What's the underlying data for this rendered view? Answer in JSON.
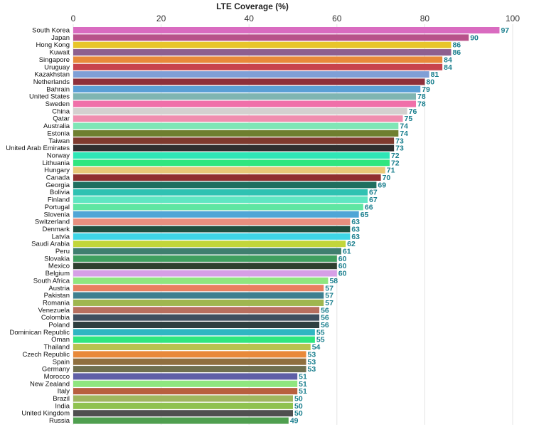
{
  "chart_data": {
    "type": "bar",
    "orientation": "horizontal",
    "title": "LTE Coverage (%)",
    "xlabel": "",
    "ylabel": "",
    "xlim": [
      0,
      100
    ],
    "ticks": [
      0,
      20,
      40,
      60,
      80,
      100
    ],
    "grid": true,
    "categories": [
      "South Korea",
      "Japan",
      "Hong Kong",
      "Kuwait",
      "Singapore",
      "Uruguay",
      "Kazakhstan",
      "Netherlands",
      "Bahrain",
      "United States",
      "Sweden",
      "China",
      "Qatar",
      "Australia",
      "Estonia",
      "Taiwan",
      "United Arab Emirates",
      "Norway",
      "Lithuania",
      "Hungary",
      "Canada",
      "Georgia",
      "Bolivia",
      "Finland",
      "Portugal",
      "Slovenia",
      "Switzerland",
      "Denmark",
      "Latvia",
      "Saudi Arabia",
      "Peru",
      "Slovakia",
      "Mexico",
      "Belgium",
      "South Africa",
      "Austria",
      "Pakistan",
      "Romania",
      "Venezuela",
      "Colombia",
      "Poland",
      "Dominican Republic",
      "Oman",
      "Thailand",
      "Czech Republic",
      "Spain",
      "Germany",
      "Morocco",
      "New Zealand",
      "Italy",
      "Brazil",
      "India",
      "United Kingdom",
      "Russia"
    ],
    "values": [
      97,
      90,
      86,
      86,
      84,
      84,
      81,
      80,
      79,
      78,
      78,
      76,
      75,
      74,
      74,
      73,
      73,
      72,
      72,
      71,
      70,
      69,
      67,
      67,
      66,
      65,
      63,
      63,
      63,
      62,
      61,
      60,
      60,
      60,
      58,
      57,
      57,
      57,
      56,
      56,
      56,
      55,
      55,
      54,
      53,
      53,
      53,
      51,
      51,
      51,
      50,
      50,
      50,
      49
    ],
    "colors": [
      "#d96bc0",
      "#b8528a",
      "#e8c52a",
      "#8e5f8f",
      "#e8893a",
      "#c8434c",
      "#7f9fd6",
      "#8e2f3a",
      "#5a9fd6",
      "#7fb5b2",
      "#f06fa9",
      "#d4d0cf",
      "#f08eaf",
      "#7fe6b6",
      "#6f7f2f",
      "#7f3a2e",
      "#2f2f2f",
      "#2fe6b6",
      "#2fe67f",
      "#e8c877",
      "#8f2f2f",
      "#1f6f5f",
      "#2fc2b2",
      "#5fe6c2",
      "#5fe6a2",
      "#4fa6d6",
      "#e88f7f",
      "#1f4f3f",
      "#3fd6e6",
      "#c2d63a",
      "#3f7f6f",
      "#3f9f5f",
      "#2f3f2f",
      "#d69fe6",
      "#8fe67f",
      "#e87f5f",
      "#3f7f8f",
      "#9fb64f",
      "#b86f5f",
      "#3f4f5f",
      "#2f3f3f",
      "#2fb6c2",
      "#2fe67f",
      "#b8c24f",
      "#e8893a",
      "#8f6f3f",
      "#6f6f4f",
      "#5f5fa6",
      "#8fe67f",
      "#b85f3f",
      "#9fb65f",
      "#8fc24f",
      "#4f4f4f",
      "#4f9f4f"
    ]
  }
}
